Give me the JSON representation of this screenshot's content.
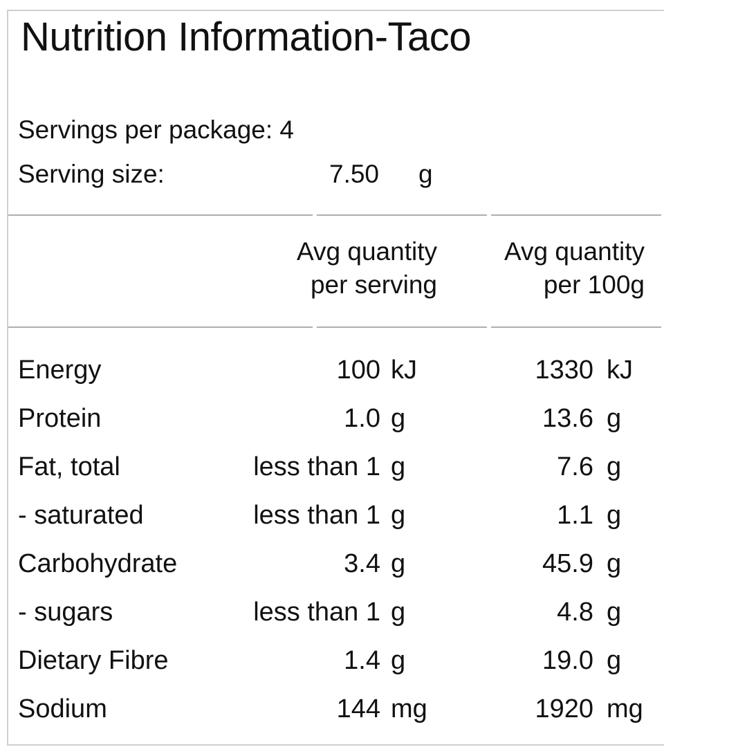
{
  "label": {
    "title": "Nutrition Information-Taco",
    "servings_per_package": "Servings per package: 4",
    "serving_size_label": "Serving size:",
    "serving_size_value": "7.50",
    "serving_size_unit": "g"
  },
  "columns": {
    "per_serving": [
      "Avg quantity",
      "per serving"
    ],
    "per_100g": [
      "Avg quantity",
      "per 100g"
    ]
  },
  "rows": [
    {
      "name": "Energy",
      "serving": "100",
      "serving_unit": "kJ",
      "per100": "1330",
      "per100_unit": "kJ"
    },
    {
      "name": "Protein",
      "serving": "1.0",
      "serving_unit": "g",
      "per100": "13.6",
      "per100_unit": "g"
    },
    {
      "name": "Fat, total",
      "serving": "less than 1",
      "serving_unit": "g",
      "per100": "7.6",
      "per100_unit": "g"
    },
    {
      "name": "- saturated",
      "serving": "less than 1",
      "serving_unit": "g",
      "per100": "1.1",
      "per100_unit": "g"
    },
    {
      "name": "Carbohydrate",
      "serving": "3.4",
      "serving_unit": "g",
      "per100": "45.9",
      "per100_unit": "g"
    },
    {
      "name": "- sugars",
      "serving": "less than 1",
      "serving_unit": "g",
      "per100": "4.8",
      "per100_unit": "g"
    },
    {
      "name": "Dietary Fibre",
      "serving": "1.4",
      "serving_unit": "g",
      "per100": "19.0",
      "per100_unit": "g"
    },
    {
      "name": "Sodium",
      "serving": "144",
      "serving_unit": "mg",
      "per100": "1920",
      "per100_unit": "mg"
    }
  ]
}
